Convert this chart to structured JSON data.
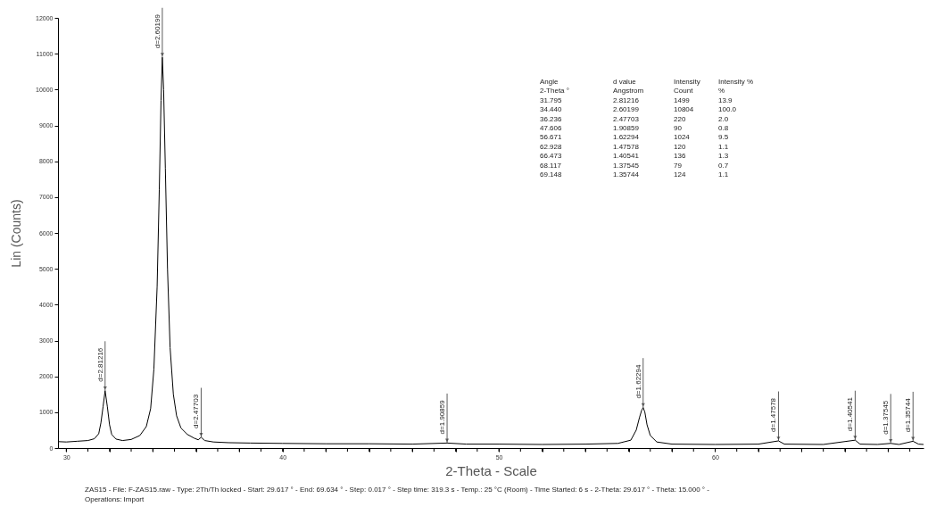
{
  "chart_data": {
    "type": "line",
    "xlabel": "2-Theta - Scale",
    "ylabel": "Lin (Counts)",
    "xlim": [
      29.617,
      69.634
    ],
    "ylim": [
      0,
      12000
    ],
    "xticks": [
      30,
      {
        "value": 31,
        "label": null
      },
      {
        "value": 32,
        "label": null
      },
      {
        "value": 33,
        "label": null
      },
      {
        "value": 34,
        "label": null
      },
      {
        "value": 35,
        "label": null
      },
      {
        "value": 36,
        "label": null
      },
      {
        "value": 37,
        "label": null
      },
      {
        "value": 38,
        "label": null
      },
      {
        "value": 39,
        "label": null
      },
      40,
      {
        "value": 41,
        "label": null
      },
      {
        "value": 42,
        "label": null
      },
      {
        "value": 43,
        "label": null
      },
      {
        "value": 44,
        "label": null
      },
      {
        "value": 45,
        "label": null
      },
      {
        "value": 46,
        "label": null
      },
      {
        "value": 47,
        "label": null
      },
      {
        "value": 48,
        "label": null
      },
      {
        "value": 49,
        "label": null
      },
      50,
      {
        "value": 51,
        "label": null
      },
      {
        "value": 52,
        "label": null
      },
      {
        "value": 53,
        "label": null
      },
      {
        "value": 54,
        "label": null
      },
      {
        "value": 55,
        "label": null
      },
      {
        "value": 56,
        "label": null
      },
      {
        "value": 57,
        "label": null
      },
      {
        "value": 58,
        "label": null
      },
      {
        "value": 59,
        "label": null
      },
      60,
      {
        "value": 61,
        "label": null
      },
      {
        "value": 62,
        "label": null
      },
      {
        "value": 63,
        "label": null
      },
      {
        "value": 64,
        "label": null
      },
      {
        "value": 65,
        "label": null
      },
      {
        "value": 66,
        "label": null
      },
      {
        "value": 67,
        "label": null
      },
      {
        "value": 68,
        "label": null
      },
      {
        "value": 69,
        "label": null
      }
    ],
    "yticks": [
      0,
      1000,
      2000,
      3000,
      4000,
      5000,
      6000,
      7000,
      8000,
      9000,
      10000,
      11000,
      12000
    ],
    "grid": false,
    "marker": "none",
    "line_style": "solid",
    "series": [
      {
        "color": "#000000",
        "x": [
          29.617,
          30.0,
          30.5,
          31.0,
          31.3,
          31.5,
          31.6,
          31.7,
          31.795,
          31.9,
          32.0,
          32.1,
          32.3,
          32.6,
          33.0,
          33.4,
          33.7,
          33.9,
          34.05,
          34.2,
          34.3,
          34.38,
          34.44,
          34.5,
          34.58,
          34.68,
          34.8,
          34.95,
          35.1,
          35.3,
          35.6,
          35.9,
          36.1,
          36.236,
          36.4,
          36.8,
          37.5,
          38.5,
          40.0,
          42.0,
          44.0,
          46.0,
          47.606,
          48.5,
          50.0,
          52.0,
          54.0,
          55.5,
          56.1,
          56.35,
          56.5,
          56.6,
          56.671,
          56.75,
          56.85,
          57.0,
          57.3,
          58.0,
          60.0,
          62.0,
          62.928,
          63.2,
          65.0,
          66.473,
          66.7,
          67.5,
          68.117,
          68.5,
          69.148,
          69.4,
          69.634
        ],
        "values": [
          180,
          170,
          190,
          210,
          260,
          400,
          700,
          1150,
          1600,
          1150,
          650,
          380,
          250,
          210,
          240,
          350,
          600,
          1100,
          2200,
          4500,
          7200,
          9700,
          10900,
          10000,
          7800,
          5000,
          2800,
          1500,
          900,
          560,
          380,
          280,
          230,
          300,
          210,
          170,
          150,
          140,
          130,
          120,
          120,
          110,
          140,
          110,
          110,
          100,
          110,
          130,
          220,
          500,
          850,
          1050,
          1130,
          1000,
          650,
          350,
          170,
          110,
          100,
          110,
          200,
          110,
          100,
          220,
          110,
          100,
          130,
          100,
          190,
          110,
          100
        ]
      }
    ],
    "annotations": [
      {
        "text": "d=2.81216",
        "x": 31.795,
        "y": 1600
      },
      {
        "text": "d=2.60199",
        "x": 34.44,
        "y": 10900
      },
      {
        "text": "d=2.47703",
        "x": 36.236,
        "y": 300
      },
      {
        "text": "d=1.90859",
        "x": 47.606,
        "y": 140
      },
      {
        "text": "d=1.62294",
        "x": 56.671,
        "y": 1130
      },
      {
        "text": "d=1.47578",
        "x": 62.928,
        "y": 200
      },
      {
        "text": "d=1.40541",
        "x": 66.473,
        "y": 220
      },
      {
        "text": "d=1.37545",
        "x": 68.117,
        "y": 130
      },
      {
        "text": "d=1.35744",
        "x": 69.148,
        "y": 190
      },
      "Angle\td value\tIntensity\tIntensity %",
      "2-Theta °\tAngstrom\tCount\t%",
      "31.795\t2.81216\t1499\t13.9",
      "34.440\t2.60199\t10804\t100.0",
      "36.236\t2.47703\t220\t2.0",
      "47.606\t1.90859\t90\t0.8",
      "56.671\t1.62294\t1024\t9.5",
      "62.928\t1.47578\t120\t1.1",
      "66.473\t1.40541\t136\t1.3",
      "68.117\t1.37545\t79\t0.7",
      "69.148\t1.35744\t124\t1.1",
      "ZAS15 - File: F-ZAS15.raw - Type: 2Th/Th locked - Start: 29.617 ° - End: 69.634 ° - Step: 0.017 ° - Step time: 319.3 s - Temp.: 25 °C (Room) - Time Started: 6 s - 2-Theta: 29.617 ° - Theta: 15.000 ° - Operations: Import"
    ]
  }
}
